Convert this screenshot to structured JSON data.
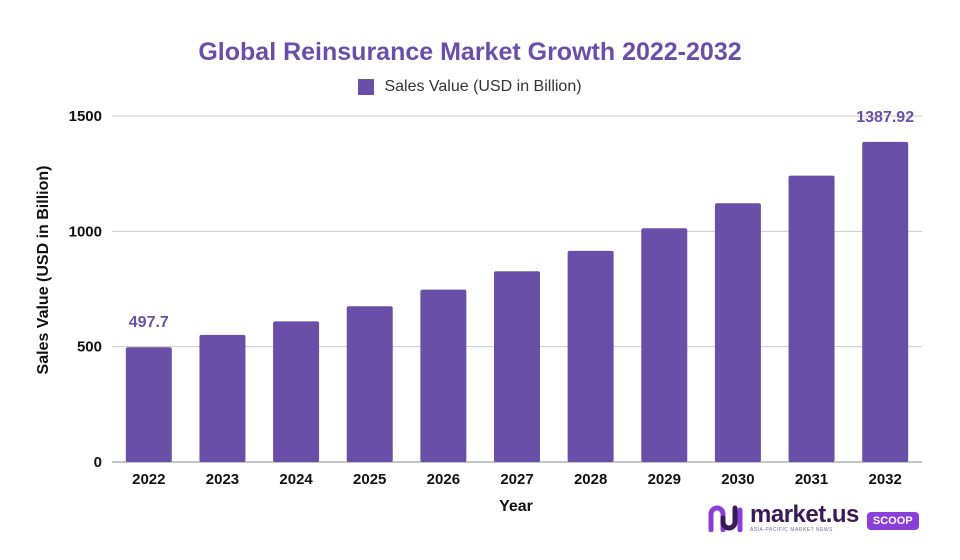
{
  "colors": {
    "bar": "#6a4fa8",
    "title": "#6a4fa8",
    "label": "#6a4fa8",
    "grid": "#cccccc",
    "brand_badge": "#8b3fd9"
  },
  "brand": {
    "name": "market.us",
    "tagline": "ASIA-PACIFIC MARKET NEWS",
    "badge": "SCOOP",
    "icon": "market-us-logo-icon"
  },
  "chart_data": {
    "type": "bar",
    "title": "Global Reinsurance Market Growth 2022-2032",
    "xlabel": "Year",
    "ylabel": "Sales Value (USD in Billion)",
    "legend": {
      "position": "top-center",
      "entries": [
        "Sales Value (USD in Billion)"
      ]
    },
    "grid": true,
    "ylim": [
      0,
      1500
    ],
    "yticks": [
      "0",
      "500",
      "1000",
      "1500"
    ],
    "categories": [
      "2022",
      "2023",
      "2024",
      "2025",
      "2026",
      "2027",
      "2028",
      "2029",
      "2030",
      "2031",
      "2032"
    ],
    "series": [
      {
        "name": "Sales Value (USD in Billion)",
        "values": [
          497.7,
          550.9,
          609.8,
          675.0,
          747.2,
          827.1,
          915.5,
          1013.4,
          1121.7,
          1241.6,
          1387.92
        ]
      }
    ],
    "data_labels": [
      {
        "index": 0,
        "text": "497.7"
      },
      {
        "index": 10,
        "text": "1387.92"
      }
    ]
  }
}
